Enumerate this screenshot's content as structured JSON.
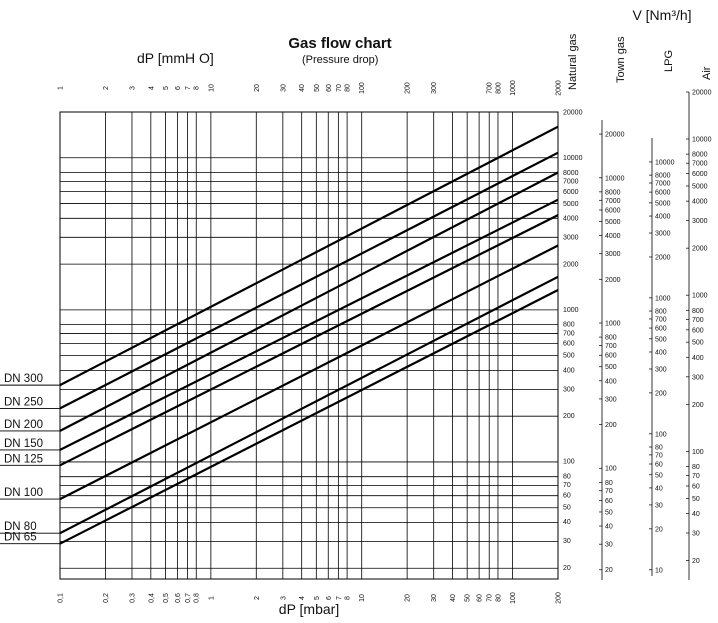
{
  "chart_data": {
    "type": "line",
    "title": "Gas flow chart",
    "subtitle": "(Pressure drop)",
    "xlabel_bottom": "dP [mbar]",
    "xlabel_top": "dP [mmH O]",
    "ylabel": "V [Nm³/h]",
    "x_scale": "log",
    "y_scale": "log",
    "xlim_mbar": [
      0.1,
      200
    ],
    "grid": true,
    "bottom_ticks": [
      "0,1",
      "0,2",
      "0,3",
      "0,4",
      "0,5",
      "0,6",
      "0,7",
      "0,8",
      "1",
      "2",
      "3",
      "4",
      "5",
      "6",
      "7",
      "8",
      "10",
      "20",
      "30",
      "40",
      "50",
      "60",
      "70",
      "80",
      "100",
      "200"
    ],
    "top_ticks": [
      "1",
      "2",
      "3",
      "4",
      "5",
      "6",
      "7",
      "8",
      "10",
      "20",
      "30",
      "40",
      "50",
      "60",
      "70",
      "80",
      "100",
      "200",
      "300",
      "700",
      "800",
      "1000",
      "2000"
    ],
    "y_scales": [
      {
        "name": "Natural gas",
        "ticks": [
          "20000",
          "10000",
          "8000",
          "7000",
          "6000",
          "5000",
          "4000",
          "3000",
          "2000",
          "1000",
          "800",
          "700",
          "600",
          "500",
          "400",
          "300",
          "200",
          "100",
          "80",
          "70",
          "60",
          "50",
          "40",
          "30",
          "20"
        ]
      },
      {
        "name": "Town gas",
        "ticks": [
          "20000",
          "10000",
          "8000",
          "7000",
          "6000",
          "5000",
          "4000",
          "3000",
          "2000",
          "1000",
          "800",
          "700",
          "600",
          "500",
          "400",
          "300",
          "200",
          "100",
          "80",
          "70",
          "60",
          "50",
          "40",
          "30",
          "20"
        ]
      },
      {
        "name": "LPG",
        "ticks": [
          "10000",
          "8000",
          "7000",
          "6000",
          "5000",
          "4000",
          "3000",
          "2000",
          "1000",
          "800",
          "700",
          "600",
          "500",
          "400",
          "300",
          "200",
          "100",
          "80",
          "70",
          "60",
          "50",
          "40",
          "30",
          "20",
          "10"
        ]
      },
      {
        "name": "Air",
        "ticks": [
          "20000",
          "10000",
          "8000",
          "7000",
          "6000",
          "5000",
          "4000",
          "3000",
          "2000",
          "1000",
          "800",
          "700",
          "600",
          "500",
          "400",
          "300",
          "200",
          "100",
          "80",
          "70",
          "60",
          "50",
          "40",
          "30",
          "20"
        ]
      }
    ],
    "series": [
      {
        "name": "DN 300",
        "x": [
          0.1,
          200
        ],
        "y": [
          320,
          16000
        ]
      },
      {
        "name": "DN 250",
        "x": [
          0.1,
          200
        ],
        "y": [
          225,
          10800
        ]
      },
      {
        "name": "DN 200",
        "x": [
          0.1,
          200
        ],
        "y": [
          160,
          8000
        ]
      },
      {
        "name": "DN 150",
        "x": [
          0.1,
          200
        ],
        "y": [
          120,
          5300
        ]
      },
      {
        "name": "DN 125",
        "x": [
          0.1,
          200
        ],
        "y": [
          95,
          4200
        ]
      },
      {
        "name": "DN 100",
        "x": [
          0.1,
          200
        ],
        "y": [
          57,
          2650
        ]
      },
      {
        "name": "DN 80",
        "x": [
          0.1,
          200
        ],
        "y": [
          34,
          1650
        ]
      },
      {
        "name": "DN 65",
        "x": [
          0.1,
          200
        ],
        "y": [
          29,
          1350
        ]
      }
    ]
  }
}
